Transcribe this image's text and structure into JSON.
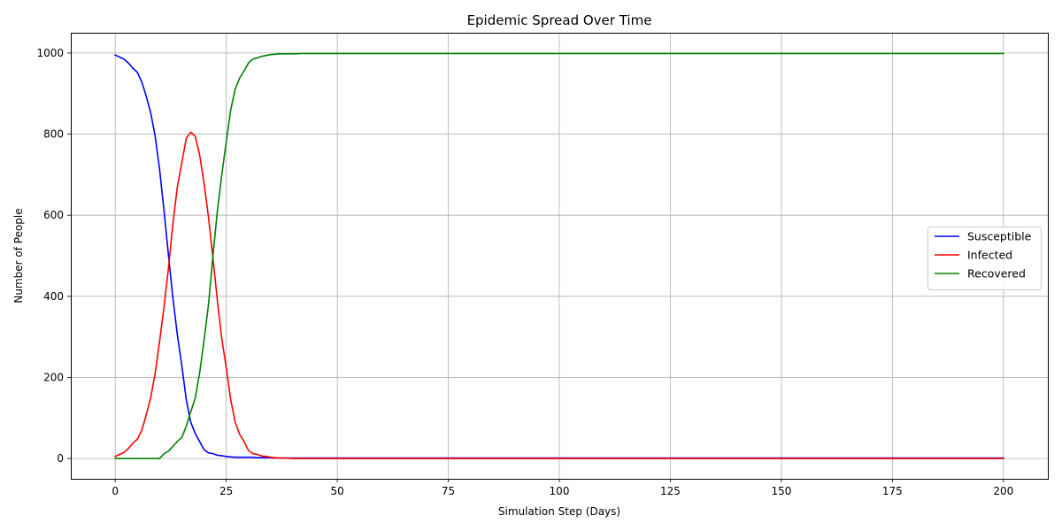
{
  "chart_data": {
    "type": "line",
    "title": "Epidemic Spread Over Time",
    "xlabel": "Simulation Step (Days)",
    "ylabel": "Number of People",
    "xlim": [
      -10,
      210
    ],
    "ylim": [
      -50,
      1050
    ],
    "xticks": [
      0,
      25,
      50,
      75,
      100,
      125,
      150,
      175,
      200
    ],
    "yticks": [
      0,
      200,
      400,
      600,
      800,
      1000
    ],
    "grid": true,
    "legend_position": "center-right",
    "series": [
      {
        "name": "Susceptible",
        "color": "#0000ff",
        "x": [
          0,
          1,
          2,
          3,
          4,
          5,
          6,
          7,
          8,
          9,
          10,
          11,
          12,
          13,
          14,
          15,
          16,
          17,
          18,
          19,
          20,
          21,
          22,
          23,
          24,
          25,
          26,
          27,
          28,
          29,
          30,
          31,
          32,
          33,
          34,
          35,
          36,
          37,
          38,
          39,
          40,
          200
        ],
        "y": [
          995,
          990,
          985,
          975,
          962,
          952,
          928,
          893,
          852,
          795,
          712,
          610,
          500,
          395,
          305,
          228,
          145,
          90,
          62,
          42,
          22,
          14,
          12,
          8,
          7,
          5,
          4,
          3,
          3,
          3,
          3,
          3,
          2,
          2,
          2,
          2,
          1,
          1,
          1,
          1,
          1,
          1
        ]
      },
      {
        "name": "Infected",
        "color": "#ff0000",
        "x": [
          0,
          1,
          2,
          3,
          4,
          5,
          6,
          7,
          8,
          9,
          10,
          11,
          12,
          13,
          14,
          15,
          16,
          17,
          18,
          19,
          20,
          21,
          22,
          23,
          24,
          25,
          26,
          27,
          28,
          29,
          30,
          31,
          32,
          33,
          34,
          35,
          36,
          37,
          38,
          40,
          200
        ],
        "y": [
          5,
          10,
          15,
          25,
          38,
          48,
          70,
          108,
          150,
          210,
          290,
          375,
          470,
          580,
          670,
          730,
          790,
          805,
          795,
          750,
          680,
          595,
          495,
          390,
          295,
          225,
          145,
          90,
          60,
          42,
          20,
          12,
          10,
          6,
          5,
          3,
          2,
          1,
          1,
          0,
          0
        ]
      },
      {
        "name": "Recovered",
        "color": "#008000",
        "x": [
          0,
          1,
          2,
          3,
          4,
          5,
          6,
          7,
          8,
          9,
          10,
          11,
          12,
          13,
          14,
          15,
          16,
          17,
          18,
          19,
          20,
          21,
          22,
          23,
          24,
          25,
          26,
          27,
          28,
          29,
          30,
          31,
          32,
          33,
          34,
          35,
          36,
          37,
          38,
          40,
          42,
          45,
          200
        ],
        "y": [
          0,
          0,
          0,
          0,
          0,
          0,
          0,
          0,
          0,
          0,
          0,
          12,
          18,
          30,
          42,
          52,
          80,
          115,
          148,
          210,
          290,
          380,
          500,
          610,
          700,
          780,
          860,
          910,
          938,
          955,
          975,
          985,
          988,
          992,
          994,
          996,
          997,
          998,
          998,
          998,
          999,
          999,
          999
        ]
      }
    ]
  }
}
